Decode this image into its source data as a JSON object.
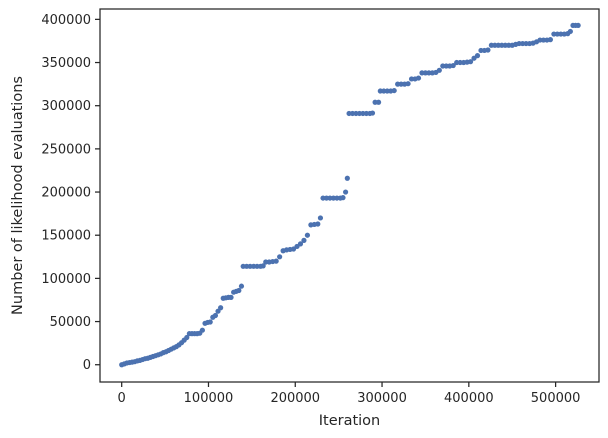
{
  "chart_data": {
    "type": "scatter",
    "title": "",
    "xlabel": "Iteration",
    "ylabel": "Number of likelihood evaluations",
    "xlim": [
      -25000,
      550000
    ],
    "ylim": [
      -20000,
      412000
    ],
    "xticks": [
      0,
      100000,
      200000,
      300000,
      400000,
      500000
    ],
    "xtick_labels": [
      "0",
      "100000",
      "200000",
      "300000",
      "400000",
      "500000"
    ],
    "yticks": [
      0,
      50000,
      100000,
      150000,
      200000,
      250000,
      300000,
      350000,
      400000
    ],
    "ytick_labels": [
      "0",
      "50000",
      "100000",
      "150000",
      "200000",
      "250000",
      "300000",
      "350000",
      "400000"
    ],
    "grid": false,
    "legend": false,
    "marker_color": "#4c72b0",
    "series": [
      {
        "points": [
          [
            0,
            0
          ],
          [
            3000,
            1000
          ],
          [
            6000,
            2000
          ],
          [
            9000,
            2500
          ],
          [
            12000,
            3000
          ],
          [
            15000,
            3500
          ],
          [
            18000,
            4500
          ],
          [
            21000,
            5000
          ],
          [
            24000,
            6000
          ],
          [
            27000,
            7000
          ],
          [
            30000,
            7500
          ],
          [
            33000,
            8500
          ],
          [
            36000,
            9500
          ],
          [
            39000,
            10500
          ],
          [
            42000,
            11500
          ],
          [
            45000,
            12500
          ],
          [
            48000,
            14000
          ],
          [
            51000,
            15000
          ],
          [
            54000,
            16500
          ],
          [
            57000,
            18000
          ],
          [
            60000,
            19500
          ],
          [
            63000,
            21000
          ],
          [
            66000,
            23000
          ],
          [
            69000,
            25500
          ],
          [
            72000,
            28500
          ],
          [
            75000,
            31500
          ],
          [
            78000,
            36000
          ],
          [
            81000,
            36000
          ],
          [
            84000,
            36000
          ],
          [
            87000,
            36000
          ],
          [
            90000,
            36500
          ],
          [
            93000,
            40000
          ],
          [
            96000,
            48000
          ],
          [
            99000,
            49000
          ],
          [
            102000,
            49500
          ],
          [
            105000,
            55000
          ],
          [
            108000,
            57000
          ],
          [
            111000,
            62000
          ],
          [
            114000,
            66000
          ],
          [
            117000,
            77000
          ],
          [
            120000,
            77500
          ],
          [
            123000,
            78000
          ],
          [
            126000,
            78000
          ],
          [
            129000,
            84000
          ],
          [
            132000,
            85000
          ],
          [
            135000,
            86000
          ],
          [
            138000,
            91000
          ],
          [
            140000,
            114000
          ],
          [
            144000,
            114000
          ],
          [
            148000,
            114000
          ],
          [
            152000,
            114000
          ],
          [
            156000,
            114000
          ],
          [
            160000,
            114000
          ],
          [
            163000,
            114500
          ],
          [
            166000,
            119000
          ],
          [
            170000,
            119000
          ],
          [
            174000,
            119500
          ],
          [
            178000,
            120000
          ],
          [
            182000,
            125000
          ],
          [
            186000,
            132000
          ],
          [
            190000,
            133000
          ],
          [
            194000,
            133500
          ],
          [
            198000,
            134000
          ],
          [
            202000,
            137000
          ],
          [
            206000,
            140000
          ],
          [
            210000,
            144000
          ],
          [
            214000,
            150000
          ],
          [
            218000,
            162000
          ],
          [
            222000,
            162500
          ],
          [
            226000,
            163000
          ],
          [
            229000,
            170000
          ],
          [
            232000,
            193000
          ],
          [
            236000,
            193000
          ],
          [
            240000,
            193000
          ],
          [
            244000,
            193000
          ],
          [
            248000,
            193000
          ],
          [
            252000,
            193000
          ],
          [
            255000,
            193500
          ],
          [
            258000,
            200000
          ],
          [
            260000,
            216000
          ],
          [
            262000,
            291000
          ],
          [
            266000,
            291000
          ],
          [
            270000,
            291000
          ],
          [
            274000,
            291000
          ],
          [
            278000,
            291000
          ],
          [
            282000,
            291000
          ],
          [
            286000,
            291000
          ],
          [
            289000,
            291500
          ],
          [
            292000,
            304000
          ],
          [
            296000,
            304000
          ],
          [
            298000,
            317000
          ],
          [
            302000,
            317000
          ],
          [
            306000,
            317000
          ],
          [
            310000,
            317000
          ],
          [
            314000,
            317500
          ],
          [
            318000,
            325000
          ],
          [
            322000,
            325000
          ],
          [
            326000,
            325000
          ],
          [
            330000,
            325500
          ],
          [
            334000,
            331000
          ],
          [
            338000,
            331000
          ],
          [
            342000,
            332000
          ],
          [
            346000,
            338000
          ],
          [
            350000,
            338000
          ],
          [
            354000,
            338000
          ],
          [
            358000,
            338000
          ],
          [
            362000,
            338500
          ],
          [
            366000,
            341000
          ],
          [
            370000,
            346000
          ],
          [
            374000,
            346000
          ],
          [
            378000,
            346000
          ],
          [
            382000,
            346500
          ],
          [
            386000,
            350000
          ],
          [
            390000,
            350000
          ],
          [
            394000,
            350000
          ],
          [
            398000,
            350500
          ],
          [
            402000,
            351000
          ],
          [
            406000,
            355000
          ],
          [
            410000,
            358000
          ],
          [
            414000,
            364000
          ],
          [
            418000,
            364000
          ],
          [
            422000,
            364500
          ],
          [
            426000,
            370000
          ],
          [
            430000,
            370000
          ],
          [
            434000,
            370000
          ],
          [
            438000,
            370000
          ],
          [
            442000,
            370000
          ],
          [
            446000,
            370000
          ],
          [
            450000,
            370000
          ],
          [
            454000,
            371000
          ],
          [
            458000,
            372000
          ],
          [
            462000,
            372000
          ],
          [
            466000,
            372000
          ],
          [
            470000,
            372000
          ],
          [
            474000,
            372500
          ],
          [
            478000,
            374000
          ],
          [
            482000,
            376000
          ],
          [
            486000,
            376000
          ],
          [
            490000,
            376000
          ],
          [
            494000,
            376500
          ],
          [
            498000,
            383000
          ],
          [
            502000,
            383000
          ],
          [
            506000,
            383000
          ],
          [
            510000,
            383000
          ],
          [
            514000,
            383500
          ],
          [
            517000,
            386000
          ],
          [
            520000,
            393000
          ],
          [
            523000,
            393000
          ],
          [
            526000,
            393000
          ]
        ]
      }
    ]
  }
}
